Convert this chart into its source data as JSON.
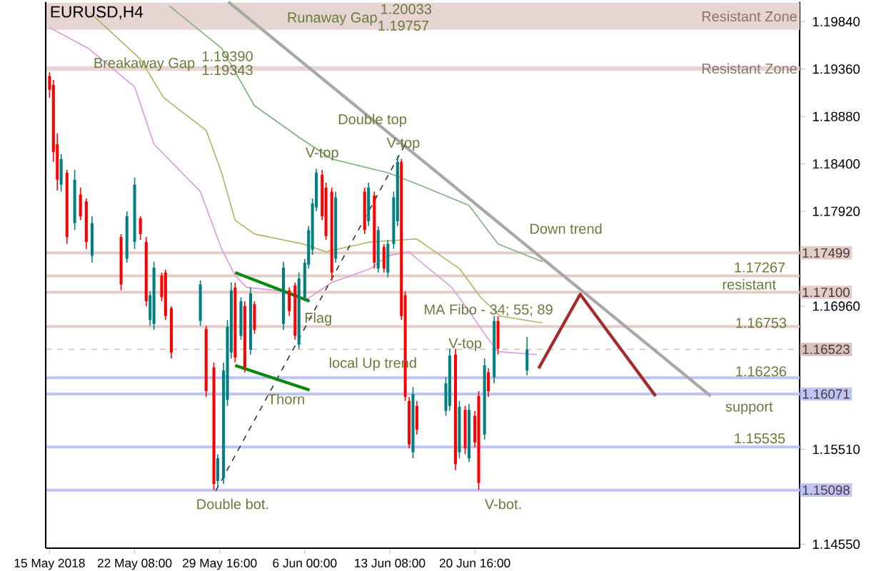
{
  "chart_data": {
    "type": "candlestick",
    "title": "EURUSD,H4",
    "xlim": [
      "2018-05-14T16:00",
      "2018-07-18T16:00"
    ],
    "ylim": [
      1.1451,
      1.2004
    ],
    "xticks": [
      {
        "value": "2018-05-15T00:00",
        "label": "15 May 2018"
      },
      {
        "value": "2018-05-22T08:00",
        "label": "22 May 08:00"
      },
      {
        "value": "2018-05-29T16:00",
        "label": "29 May 16:00"
      },
      {
        "value": "2018-06-06T00:00",
        "label": "6 Jun 00:00"
      },
      {
        "value": "2018-06-13T08:00",
        "label": "13 Jun 08:00"
      },
      {
        "value": "2018-06-20T16:00",
        "label": "20 Jun 16:00"
      }
    ],
    "yticks": [
      {
        "value": 1.1984,
        "label": "1.19840"
      },
      {
        "value": 1.1936,
        "label": "1.19360"
      },
      {
        "value": 1.1888,
        "label": "1.18880"
      },
      {
        "value": 1.184,
        "label": "1.18400"
      },
      {
        "value": 1.1792,
        "label": "1.17920"
      },
      {
        "value": 1.1696,
        "label": "1.16960"
      },
      {
        "value": 1.1551,
        "label": "1.15510"
      },
      {
        "value": 1.1455,
        "label": "1.14550"
      }
    ],
    "bands": [
      {
        "axis": "y",
        "from": 1.19757,
        "to": 1.20033,
        "label": "Resistant Zone",
        "color": "#e6d5d2"
      },
      {
        "axis": "y",
        "from": 1.19343,
        "to": 1.1939,
        "label": "Resistant Zone",
        "color": "#e6d5d2"
      }
    ],
    "ref_lines": [
      {
        "axis": "y",
        "value": 1.17499,
        "label": "1.17499",
        "color": "#e3cdc8"
      },
      {
        "axis": "y",
        "value": 1.17267,
        "color": "#e3cdc8"
      },
      {
        "axis": "y",
        "value": 1.171,
        "label": "1.17100",
        "color": "#e3cdc8"
      },
      {
        "axis": "y",
        "value": 1.16753,
        "color": "#e3cdc8"
      },
      {
        "axis": "y",
        "value": 1.16523,
        "label": "1.16523",
        "color": "#d9c2bd",
        "line_style": "dashed"
      },
      {
        "axis": "y",
        "value": 1.16236,
        "color": "#bfc3f5"
      },
      {
        "axis": "y",
        "value": 1.16071,
        "label": "1.16071",
        "color": "#bfc3f5"
      },
      {
        "axis": "y",
        "value": 1.15535,
        "color": "#bfc3f5"
      },
      {
        "axis": "y",
        "value": 1.15098,
        "label": "1.15098",
        "color": "#bfc3f5"
      }
    ],
    "series": [
      {
        "type": "line",
        "color": "#dd99dd",
        "line_style": "solid",
        "x": [
          "2018-05-15T00:00",
          "2018-05-18T08:00",
          "2018-05-22T08:00",
          "2018-05-24T00:00",
          "2018-05-28T00:00",
          "2018-05-29T20:00",
          "2018-05-31T00:00",
          "2018-06-01T00:00",
          "2018-06-04T04:00",
          "2018-06-05T08:00",
          "2018-06-06T08:00",
          "2018-06-08T08:00",
          "2018-06-11T16:00",
          "2018-06-13T04:00",
          "2018-06-15T00:00",
          "2018-06-15T16:00",
          "2018-06-18T16:00",
          "2018-06-20T04:00",
          "2018-06-21T12:00",
          "2018-06-22T16:00",
          "2018-06-26T00:00"
        ],
        "values": [
          1.1978,
          1.1957,
          1.1918,
          1.186,
          1.1812,
          1.1754,
          1.1727,
          1.1715,
          1.1711,
          1.1705,
          1.1704,
          1.172,
          1.1734,
          1.1747,
          1.1751,
          1.1744,
          1.1715,
          1.1691,
          1.1668,
          1.165,
          1.1647
        ]
      },
      {
        "type": "line",
        "color": "#b5b060",
        "line_style": "solid",
        "x": [
          "2018-05-18T12:00",
          "2018-05-22T20:00",
          "2018-05-24T20:00",
          "2018-05-28T12:00",
          "2018-05-29T20:00",
          "2018-05-31T00:00",
          "2018-06-01T16:00",
          "2018-06-05T20:00",
          "2018-06-07T20:00",
          "2018-06-11T16:00",
          "2018-06-15T16:00",
          "2018-06-19T08:00",
          "2018-06-21T04:00",
          "2018-06-22T20:00",
          "2018-06-26T12:00"
        ],
        "values": [
          1.1993,
          1.1946,
          1.1907,
          1.1874,
          1.1831,
          1.1783,
          1.1769,
          1.1759,
          1.1751,
          1.1761,
          1.1764,
          1.1734,
          1.1705,
          1.1686,
          1.1679
        ]
      },
      {
        "type": "line",
        "color": "#80b080",
        "line_style": "solid",
        "x": [
          "2018-05-25T08:00",
          "2018-05-29T20:00",
          "2018-06-01T16:00",
          "2018-06-05T12:00",
          "2018-06-08T08:00",
          "2018-06-13T04:00",
          "2018-06-15T20:00",
          "2018-06-20T04:00",
          "2018-06-22T16:00",
          "2018-06-26T12:00"
        ],
        "values": [
          1.2,
          1.1957,
          1.1899,
          1.1867,
          1.1845,
          1.1831,
          1.1819,
          1.1798,
          1.1759,
          1.1741
        ]
      },
      {
        "type": "line",
        "color": "#a8a8a8",
        "line_style": "solid",
        "x": [
          "2018-05-30T10:00",
          "2018-07-11T00:00"
        ],
        "values": [
          1.2004,
          1.1605
        ]
      },
      {
        "type": "line",
        "color": "#333333",
        "line_style": "dashed",
        "x": [
          "2018-05-29T08:00",
          "2018-06-14T16:00"
        ],
        "values": [
          1.1509,
          1.186
        ]
      },
      {
        "type": "line",
        "color": "#0a8a0a",
        "line_style": "solid",
        "x": [
          "2018-05-31T00:00",
          "2018-06-06T10:00"
        ],
        "values": [
          1.173,
          1.1701
        ]
      },
      {
        "type": "line",
        "color": "#0a8a0a",
        "line_style": "solid",
        "x": [
          "2018-05-31T00:00",
          "2018-06-06T10:00"
        ],
        "values": [
          1.1636,
          1.1611
        ]
      },
      {
        "type": "line",
        "color": "#a52a2a",
        "line_style": "solid",
        "x": [
          "2018-06-26T04:00",
          "2018-06-29T18:00",
          "2018-07-06T06:00"
        ],
        "values": [
          1.1633,
          1.1708,
          1.1605
        ]
      },
      {
        "x": [
          "2018-05-15T00:00",
          "2018-05-15T08:00",
          "2018-05-15T16:00",
          "2018-05-16T00:00",
          "2018-05-16T12:00",
          "2018-05-17T04:00",
          "2018-05-17T16:00",
          "2018-05-18T04:00",
          "2018-05-18T16:00",
          "2018-05-21T04:00",
          "2018-05-21T16:00",
          "2018-05-22T08:00",
          "2018-05-22T20:00",
          "2018-05-23T08:00",
          "2018-05-23T16:00",
          "2018-05-24T00:00",
          "2018-05-24T16:00",
          "2018-05-25T00:00",
          "2018-05-25T12:00",
          "2018-05-28T00:00",
          "2018-05-28T12:00",
          "2018-05-29T04:00",
          "2018-05-29T12:00",
          "2018-05-30T00:00",
          "2018-05-30T08:00",
          "2018-05-30T16:00",
          "2018-05-31T00:00",
          "2018-05-31T12:00",
          "2018-05-31T20:00",
          "2018-06-01T08:00",
          "2018-06-01T16:00",
          "2018-06-04T04:00",
          "2018-06-04T16:00",
          "2018-06-05T04:00",
          "2018-06-05T12:00",
          "2018-06-06T00:00",
          "2018-06-06T08:00",
          "2018-06-06T16:00",
          "2018-06-07T00:00",
          "2018-06-07T12:00",
          "2018-06-07T20:00",
          "2018-06-08T08:00",
          "2018-06-08T16:00",
          "2018-06-11T04:00",
          "2018-06-11T12:00",
          "2018-06-12T00:00",
          "2018-06-12T08:00",
          "2018-06-12T20:00",
          "2018-06-13T04:00",
          "2018-06-13T16:00",
          "2018-06-14T00:00",
          "2018-06-14T08:00",
          "2018-06-14T16:00",
          "2018-06-15T00:00",
          "2018-06-15T08:00",
          "2018-06-15T16:00",
          "2018-06-18T04:00",
          "2018-06-18T12:00",
          "2018-06-19T00:00",
          "2018-06-19T08:00",
          "2018-06-19T20:00",
          "2018-06-20T04:00",
          "2018-06-20T16:00",
          "2018-06-21T00:00",
          "2018-06-21T12:00",
          "2018-06-21T20:00",
          "2018-06-22T08:00",
          "2018-06-22T16:00",
          "2018-06-25T04:00"
        ],
        "ohlc": [
          [
            1.1929,
            1.1933,
            1.1907,
            1.1915
          ],
          [
            1.192,
            1.1925,
            1.1842,
            1.1852
          ],
          [
            1.186,
            1.1871,
            1.1813,
            1.1824
          ],
          [
            1.1819,
            1.185,
            1.1812,
            1.1845
          ],
          [
            1.1831,
            1.1834,
            1.1759,
            1.1766
          ],
          [
            1.178,
            1.1834,
            1.1773,
            1.1824
          ],
          [
            1.1809,
            1.1816,
            1.1783,
            1.1787
          ],
          [
            1.1802,
            1.1805,
            1.1754,
            1.1761
          ],
          [
            1.1747,
            1.1787,
            1.174,
            1.178
          ],
          [
            1.1766,
            1.1769,
            1.1712,
            1.1718
          ],
          [
            1.1744,
            1.1792,
            1.174,
            1.1787
          ],
          [
            1.1761,
            1.1826,
            1.1754,
            1.1819
          ],
          [
            1.1785,
            1.1787,
            1.1763,
            1.1769
          ],
          [
            1.1761,
            1.1766,
            1.1696,
            1.1701
          ],
          [
            1.1682,
            1.1711,
            1.1676,
            1.1707
          ],
          [
            1.1678,
            1.1741,
            1.1672,
            1.1735
          ],
          [
            1.1727,
            1.173,
            1.1701,
            1.1705
          ],
          [
            1.173,
            1.1733,
            1.1682,
            1.1686
          ],
          [
            1.1694,
            1.1696,
            1.1643,
            1.1649
          ],
          [
            1.1681,
            1.1722,
            1.1676,
            1.1718
          ],
          [
            1.1673,
            1.1676,
            1.1604,
            1.161
          ],
          [
            1.1634,
            1.1639,
            1.151,
            1.1516
          ],
          [
            1.1519,
            1.1546,
            1.1513,
            1.1542
          ],
          [
            1.1522,
            1.1639,
            1.1516,
            1.1631
          ],
          [
            1.1601,
            1.1682,
            1.1595,
            1.1675
          ],
          [
            1.1649,
            1.172,
            1.1643,
            1.1712
          ],
          [
            1.1715,
            1.172,
            1.1639,
            1.1644
          ],
          [
            1.1666,
            1.1705,
            1.1662,
            1.1701
          ],
          [
            1.1696,
            1.1701,
            1.1629,
            1.1634
          ],
          [
            1.1652,
            1.1715,
            1.1647,
            1.1709
          ],
          [
            1.1698,
            1.1701,
            1.1668,
            1.1672
          ],
          [
            1.1678,
            1.1741,
            1.1672,
            1.1735
          ],
          [
            1.1712,
            1.1715,
            1.1686,
            1.1691
          ],
          [
            1.1717,
            1.172,
            1.1662,
            1.1666
          ],
          [
            1.1657,
            1.173,
            1.1653,
            1.1724
          ],
          [
            1.1705,
            1.1744,
            1.1701,
            1.174
          ],
          [
            1.1738,
            1.1777,
            1.1734,
            1.1773
          ],
          [
            1.1753,
            1.1805,
            1.1748,
            1.18
          ],
          [
            1.1796,
            1.1835,
            1.1792,
            1.1831
          ],
          [
            1.1829,
            1.1834,
            1.1783,
            1.1787
          ],
          [
            1.1816,
            1.1821,
            1.1763,
            1.1767
          ],
          [
            1.1812,
            1.1816,
            1.1722,
            1.173
          ],
          [
            1.1744,
            1.1812,
            1.174,
            1.1806
          ],
          [
            1.1812,
            1.1816,
            1.1769,
            1.1773
          ],
          [
            1.1782,
            1.1821,
            1.1777,
            1.1816
          ],
          [
            1.1808,
            1.1812,
            1.1734,
            1.174
          ],
          [
            1.1734,
            1.1777,
            1.173,
            1.1773
          ],
          [
            1.1756,
            1.1759,
            1.173,
            1.1734
          ],
          [
            1.173,
            1.1763,
            1.1725,
            1.1759
          ],
          [
            1.1759,
            1.1812,
            1.1754,
            1.1806
          ],
          [
            1.1782,
            1.1848,
            1.1777,
            1.1842
          ],
          [
            1.1842,
            1.1845,
            1.1682,
            1.1686
          ],
          [
            1.1707,
            1.1711,
            1.16,
            1.1604
          ],
          [
            1.16,
            1.1604,
            1.1552,
            1.1556
          ],
          [
            1.1548,
            1.1614,
            1.1542,
            1.1607
          ],
          [
            1.1595,
            1.16,
            1.1566,
            1.1571
          ],
          [
            1.159,
            1.1624,
            1.1585,
            1.1618
          ],
          [
            1.1595,
            1.1653,
            1.159,
            1.1646
          ],
          [
            1.1647,
            1.1653,
            1.153,
            1.1536
          ],
          [
            1.1548,
            1.16,
            1.1542,
            1.1594
          ],
          [
            1.1591,
            1.1595,
            1.1546,
            1.1552
          ],
          [
            1.1542,
            1.1597,
            1.1538,
            1.1591
          ],
          [
            1.1585,
            1.159,
            1.1553,
            1.1558
          ],
          [
            1.1605,
            1.161,
            1.151,
            1.1517
          ],
          [
            1.1566,
            1.1643,
            1.1561,
            1.1636
          ],
          [
            1.1629,
            1.1633,
            1.1604,
            1.161
          ],
          [
            1.1624,
            1.1686,
            1.1618,
            1.1681
          ],
          [
            1.1681,
            1.1686,
            1.1647,
            1.1653
          ],
          [
            1.1631,
            1.1665,
            1.1626,
            1.1652
          ]
        ],
        "colors": [
          "#ff0000",
          "#ff0000",
          "#ff0000",
          "#008080",
          "#ff0000",
          "#008080",
          "#ff0000",
          "#ff0000",
          "#008080",
          "#ff0000",
          "#008080",
          "#008080",
          "#ff0000",
          "#ff0000",
          "#008080",
          "#008080",
          "#ff0000",
          "#ff0000",
          "#ff0000",
          "#008080",
          "#ff0000",
          "#ff0000",
          "#008080",
          "#008080",
          "#008080",
          "#008080",
          "#ff0000",
          "#008080",
          "#ff0000",
          "#008080",
          "#ff0000",
          "#008080",
          "#ff0000",
          "#ff0000",
          "#008080",
          "#008080",
          "#008080",
          "#008080",
          "#008080",
          "#ff0000",
          "#ff0000",
          "#ff0000",
          "#008080",
          "#ff0000",
          "#008080",
          "#ff0000",
          "#008080",
          "#ff0000",
          "#008080",
          "#008080",
          "#008080",
          "#ff0000",
          "#ff0000",
          "#ff0000",
          "#008080",
          "#ff0000",
          "#008080",
          "#008080",
          "#ff0000",
          "#008080",
          "#ff0000",
          "#008080",
          "#ff0000",
          "#ff0000",
          "#008080",
          "#ff0000",
          "#008080",
          "#ff0000",
          "#008080"
        ]
      }
    ],
    "annotations": [
      "Runaway Gap",
      "1.20033",
      {
        "text": "1.19757",
        "x": "2018-06-14T12:00",
        "y": 1.198
      },
      {
        "text": "Breakaway Gap",
        "x": "2018-05-23T04:00",
        "y": 1.1941
      },
      {
        "text": "1.19390",
        "x": "2018-05-30T08:00",
        "y": 1.1949
      },
      {
        "text": "1.19343",
        "x": "2018-05-30T08:00",
        "y": 1.1935
      },
      {
        "text": "Double top",
        "x": "2018-06-11T20:00",
        "y": 1.1884
      },
      {
        "text": "V-top",
        "x": "2018-06-07T12:00",
        "y": 1.185
      },
      {
        "text": "V-top",
        "x": "2018-06-14T12:00",
        "y": 1.186
      },
      {
        "text": "V-top",
        "x": "2018-06-19T20:00",
        "y": 1.1657
      },
      {
        "text": "Flag",
        "x": "2018-06-07T04:00",
        "y": 1.1683
      },
      {
        "text": "Thorn",
        "x": "2018-06-04T10:00",
        "y": 1.1602
      },
      "local Up trend",
      "Down trend",
      {
        "text": "MA Fibo - 34; 55; 89",
        "x": "2018-06-21T20:00",
        "y": 1.1692
      },
      "1.17267",
      "resistant",
      {
        "text": "1.16753",
        "x": "2018-07-15T08:00",
        "y": 1.1679
      },
      {
        "text": "1.16236",
        "x": "2018-07-15T08:00",
        "y": 1.163
      },
      "support",
      "1.15535",
      "Double bot.",
      "V-bot."
    ]
  }
}
